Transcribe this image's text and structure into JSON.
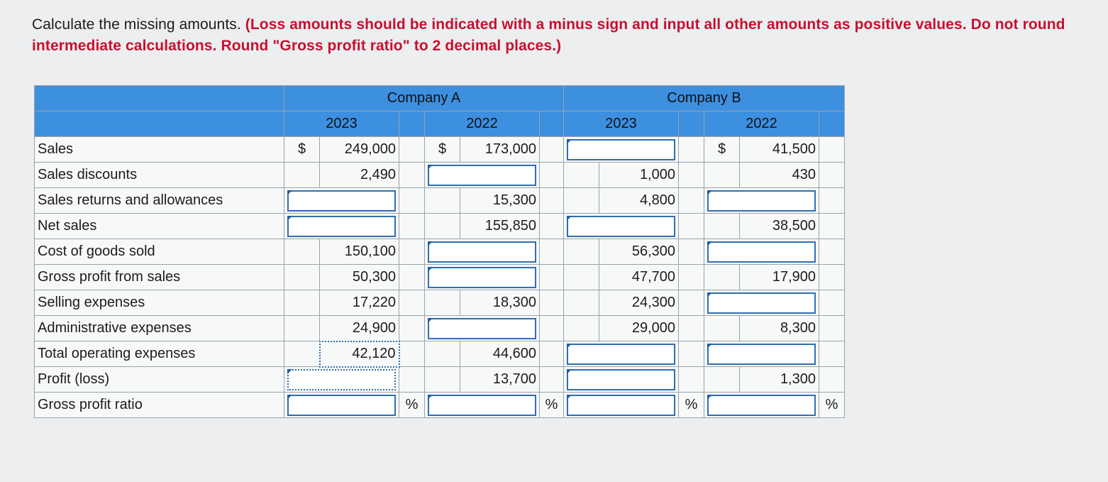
{
  "instructions": {
    "lead": "Calculate the missing amounts.",
    "note": "(Loss amounts should be indicated with a minus sign and input all other amounts as positive values. Do not round intermediate calculations. Round \"Gross profit ratio\" to 2 decimal places.)"
  },
  "table": {
    "companies": [
      "Company A",
      "Company B"
    ],
    "years": [
      "2023",
      "2022",
      "2023",
      "2022"
    ],
    "currency_symbol": "$",
    "percent_symbol": "%",
    "rows": [
      {
        "label": "Sales",
        "a2023": "249,000",
        "a2022": "173,000",
        "b2023": "",
        "b2022": "41,500"
      },
      {
        "label": "Sales discounts",
        "a2023": "2,490",
        "a2022": "",
        "b2023": "1,000",
        "b2022": "430"
      },
      {
        "label": "Sales returns and allowances",
        "a2023": "",
        "a2022": "15,300",
        "b2023": "4,800",
        "b2022": ""
      },
      {
        "label": "Net sales",
        "a2023": "",
        "a2022": "155,850",
        "b2023": "",
        "b2022": "38,500"
      },
      {
        "label": "Cost of goods sold",
        "a2023": "150,100",
        "a2022": "",
        "b2023": "56,300",
        "b2022": ""
      },
      {
        "label": "Gross profit from sales",
        "a2023": "50,300",
        "a2022": "",
        "b2023": "47,700",
        "b2022": "17,900"
      },
      {
        "label": "Selling expenses",
        "a2023": "17,220",
        "a2022": "18,300",
        "b2023": "24,300",
        "b2022": ""
      },
      {
        "label": "Administrative expenses",
        "a2023": "24,900",
        "a2022": "",
        "b2023": "29,000",
        "b2022": "8,300"
      },
      {
        "label": "Total operating expenses",
        "a2023": "42,120",
        "a2022": "44,600",
        "b2023": "",
        "b2022": ""
      },
      {
        "label": "Profit (loss)",
        "a2023": "",
        "a2022": "13,700",
        "b2023": "",
        "b2022": "1,300"
      },
      {
        "label": "Gross profit ratio",
        "a2023": "",
        "a2022": "",
        "b2023": "",
        "b2022": ""
      }
    ]
  },
  "colors": {
    "header_blue": "#3d8fe0",
    "instruction_red": "#c8102e",
    "input_border": "#2f6fb0"
  }
}
